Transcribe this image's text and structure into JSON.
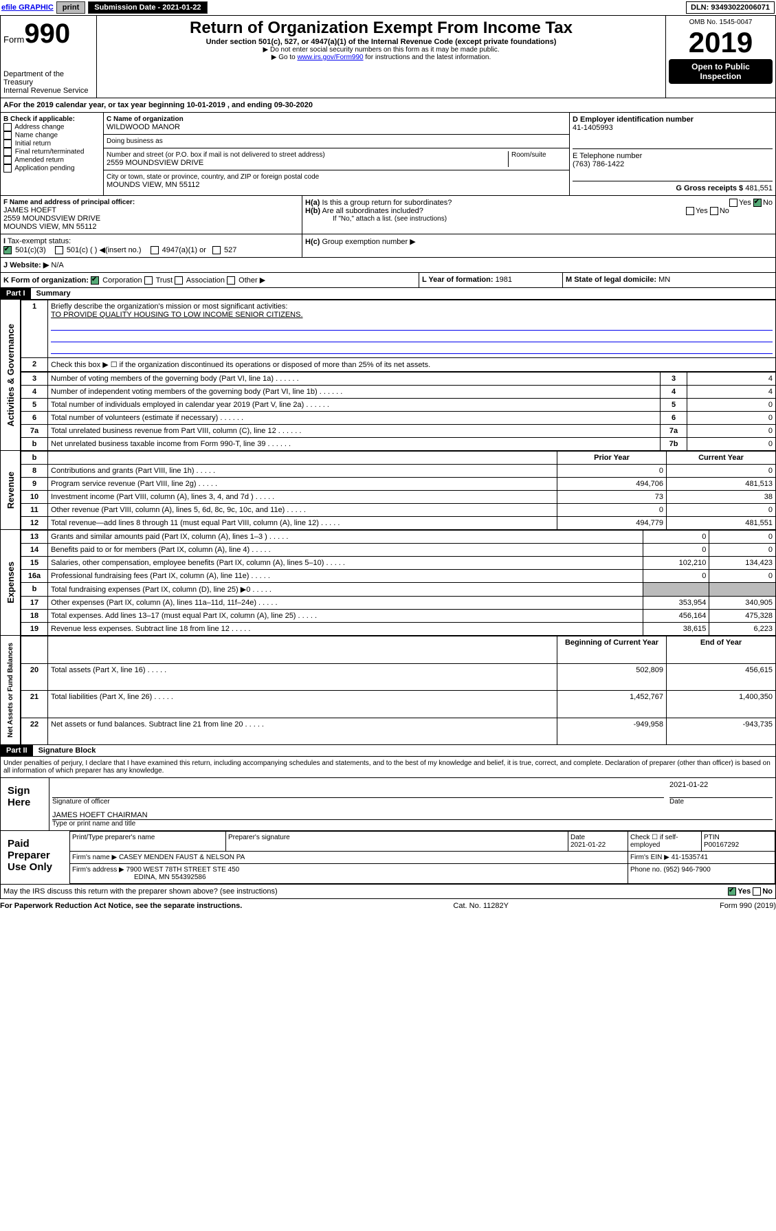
{
  "topbar": {
    "efile": "efile GRAPHIC",
    "print": "print",
    "sub_lbl": "Submission Date - ",
    "sub_date": "2021-01-22",
    "dln_lbl": "DLN: ",
    "dln": "93493022006071"
  },
  "hdr": {
    "form": "Form",
    "num": "990",
    "dept": "Department of the Treasury",
    "irs": "Internal Revenue Service",
    "title": "Return of Organization Exempt From Income Tax",
    "sub1": "Under section 501(c), 527, or 4947(a)(1) of the Internal Revenue Code (except private foundations)",
    "sub2": "▶ Do not enter social security numbers on this form as it may be made public.",
    "sub3_pre": "▶ Go to ",
    "sub3_link": "www.irs.gov/Form990",
    "sub3_post": " for instructions and the latest information.",
    "omb_lbl": "OMB No. ",
    "omb": "1545-0047",
    "year": "2019",
    "open": "Open to Public Inspection"
  },
  "period": {
    "pre": "For the 2019 calendar year, or tax year beginning ",
    "start": "10-01-2019",
    "mid": " , and ending ",
    "end": "09-30-2020"
  },
  "boxB": {
    "hdr": "B Check if applicable:",
    "items": [
      "Address change",
      "Name change",
      "Initial return",
      "Final return/terminated",
      "Amended return",
      "Application pending"
    ]
  },
  "boxC": {
    "lbl": "C Name of organization",
    "name": "WILDWOOD MANOR",
    "dba_lbl": "Doing business as",
    "addr_lbl": "Number and street (or P.O. box if mail is not delivered to street address)",
    "room_lbl": "Room/suite",
    "addr": "2559 MOUNDSVIEW DRIVE",
    "city_lbl": "City or town, state or province, country, and ZIP or foreign postal code",
    "city": "MOUNDS VIEW, MN  55112"
  },
  "boxD": {
    "lbl": "D Employer identification number",
    "ein": "41-1405993"
  },
  "boxE": {
    "lbl": "E Telephone number",
    "tel": "(763) 786-1422"
  },
  "boxG": {
    "lbl": "G Gross receipts $",
    "amt": "481,551"
  },
  "boxF": {
    "lbl": "F  Name and address of principal officer:",
    "name": "JAMES HOEFT",
    "addr1": "2559 MOUNDSVIEW DRIVE",
    "addr2": "MOUNDS VIEW, MN  55112"
  },
  "boxH": {
    "a": "H(a)",
    "a_txt": "Is this a group return for subordinates?",
    "b": "H(b)",
    "b_txt": "Are all subordinates included?",
    "note": "If \"No,\" attach a list. (see instructions)",
    "c": "H(c)",
    "c_txt": "Group exemption number ▶",
    "yes": "Yes",
    "no": "No"
  },
  "boxI": {
    "lbl": "Tax-exempt status:",
    "o1": "501(c)(3)",
    "o2": "501(c) (   ) ◀(insert no.)",
    "o3": "4947(a)(1) or",
    "o4": "527"
  },
  "boxJ": {
    "lbl": "Website: ▶",
    "val": " N/A"
  },
  "boxK": {
    "lbl": "K Form of organization:",
    "o1": "Corporation",
    "o2": "Trust",
    "o3": "Association",
    "o4": "Other ▶"
  },
  "boxL": {
    "lbl": "L Year of formation: ",
    "val": "1981"
  },
  "boxM": {
    "lbl": "M State of legal domicile: ",
    "val": "MN"
  },
  "part1": {
    "lbl": "Part I",
    "title": "Summary"
  },
  "gov": {
    "side": "Activities & Governance",
    "l1": "1",
    "t1": "Briefly describe the organization's mission or most significant activities:",
    "mission": "TO PROVIDE QUALITY HOUSING TO LOW INCOME SENIOR CITIZENS.",
    "l2": "2",
    "t2": "Check this box ▶ ☐  if the organization discontinued its operations or disposed of more than 25% of its net assets.",
    "rows": [
      {
        "n": "3",
        "t": "Number of voting members of the governing body (Part VI, line 1a)",
        "b": "3",
        "v": "4"
      },
      {
        "n": "4",
        "t": "Number of independent voting members of the governing body (Part VI, line 1b)",
        "b": "4",
        "v": "4"
      },
      {
        "n": "5",
        "t": "Total number of individuals employed in calendar year 2019 (Part V, line 2a)",
        "b": "5",
        "v": "0"
      },
      {
        "n": "6",
        "t": "Total number of volunteers (estimate if necessary)",
        "b": "6",
        "v": "0"
      },
      {
        "n": "7a",
        "t": "Total unrelated business revenue from Part VIII, column (C), line 12",
        "b": "7a",
        "v": "0"
      },
      {
        "n": "b",
        "t": "Net unrelated business taxable income from Form 990-T, line 39",
        "b": "7b",
        "v": "0"
      }
    ]
  },
  "rev": {
    "side": "Revenue",
    "hdr_prior": "Prior Year",
    "hdr_curr": "Current Year",
    "rows": [
      {
        "n": "8",
        "t": "Contributions and grants (Part VIII, line 1h)",
        "p": "0",
        "c": "0"
      },
      {
        "n": "9",
        "t": "Program service revenue (Part VIII, line 2g)",
        "p": "494,706",
        "c": "481,513"
      },
      {
        "n": "10",
        "t": "Investment income (Part VIII, column (A), lines 3, 4, and 7d )",
        "p": "73",
        "c": "38"
      },
      {
        "n": "11",
        "t": "Other revenue (Part VIII, column (A), lines 5, 6d, 8c, 9c, 10c, and 11e)",
        "p": "0",
        "c": "0"
      },
      {
        "n": "12",
        "t": "Total revenue—add lines 8 through 11 (must equal Part VIII, column (A), line 12)",
        "p": "494,779",
        "c": "481,551"
      }
    ]
  },
  "exp": {
    "side": "Expenses",
    "rows": [
      {
        "n": "13",
        "t": "Grants and similar amounts paid (Part IX, column (A), lines 1–3 )",
        "p": "0",
        "c": "0"
      },
      {
        "n": "14",
        "t": "Benefits paid to or for members (Part IX, column (A), line 4)",
        "p": "0",
        "c": "0"
      },
      {
        "n": "15",
        "t": "Salaries, other compensation, employee benefits (Part IX, column (A), lines 5–10)",
        "p": "102,210",
        "c": "134,423"
      },
      {
        "n": "16a",
        "t": "Professional fundraising fees (Part IX, column (A), line 11e)",
        "p": "0",
        "c": "0"
      },
      {
        "n": "b",
        "t": "Total fundraising expenses (Part IX, column (D), line 25) ▶0",
        "p": "",
        "c": ""
      },
      {
        "n": "17",
        "t": "Other expenses (Part IX, column (A), lines 11a–11d, 11f–24e)",
        "p": "353,954",
        "c": "340,905"
      },
      {
        "n": "18",
        "t": "Total expenses. Add lines 13–17 (must equal Part IX, column (A), line 25)",
        "p": "456,164",
        "c": "475,328"
      },
      {
        "n": "19",
        "t": "Revenue less expenses. Subtract line 18 from line 12",
        "p": "38,615",
        "c": "6,223"
      }
    ]
  },
  "net": {
    "side": "Net Assets or Fund Balances",
    "hdr_beg": "Beginning of Current Year",
    "hdr_end": "End of Year",
    "rows": [
      {
        "n": "20",
        "t": "Total assets (Part X, line 16)",
        "p": "502,809",
        "c": "456,615"
      },
      {
        "n": "21",
        "t": "Total liabilities (Part X, line 26)",
        "p": "1,452,767",
        "c": "1,400,350"
      },
      {
        "n": "22",
        "t": "Net assets or fund balances. Subtract line 21 from line 20",
        "p": "-949,958",
        "c": "-943,735"
      }
    ]
  },
  "part2": {
    "lbl": "Part II",
    "title": "Signature Block",
    "decl": "Under penalties of perjury, I declare that I have examined this return, including accompanying schedules and statements, and to the best of my knowledge and belief, it is true, correct, and complete. Declaration of preparer (other than officer) is based on all information of which preparer has any knowledge."
  },
  "sign": {
    "lbl": "Sign Here",
    "sig_lbl": "Signature of officer",
    "date": "2021-01-22",
    "date_lbl": "Date",
    "name": "JAMES HOEFT CHAIRMAN",
    "name_lbl": "Type or print name and title"
  },
  "prep": {
    "lbl": "Paid Preparer Use Only",
    "c1": "Print/Type preparer's name",
    "c2": "Preparer's signature",
    "c3": "Date",
    "c3v": "2021-01-22",
    "c4": "Check ☐ if self-employed",
    "c5": "PTIN",
    "c5v": "P00167292",
    "firm_lbl": "Firm's name    ▶",
    "firm": "CASEY MENDEN FAUST & NELSON PA",
    "ein_lbl": "Firm's EIN ▶",
    "ein": "41-1535741",
    "addr_lbl": "Firm's address ▶",
    "addr1": "7900 WEST 78TH STREET STE 450",
    "addr2": "EDINA, MN  554392586",
    "ph_lbl": "Phone no. ",
    "ph": "(952) 946-7900"
  },
  "discuss": {
    "q": "May the IRS discuss this return with the preparer shown above? (see instructions)",
    "yes": "Yes",
    "no": "No"
  },
  "footer": {
    "l": "For Paperwork Reduction Act Notice, see the separate instructions.",
    "m": "Cat. No. 11282Y",
    "r": "Form 990 (2019)"
  }
}
